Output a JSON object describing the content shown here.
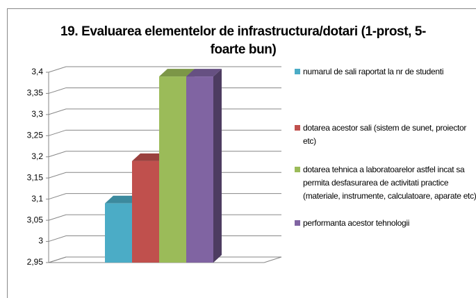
{
  "chart_data": {
    "type": "bar",
    "title": "19. Evaluarea elementelor de infrastructura/dotari (1-prost, 5-foarte bun)",
    "series": [
      {
        "name": "numarul de sali raportat la nr de studenti",
        "color": "#4bacc6",
        "values": [
          3.09
        ]
      },
      {
        "name": "dotarea acestor sali (sistem de sunet, proiector etc)",
        "color": "#c0504d",
        "values": [
          3.19
        ]
      },
      {
        "name": "dotarea tehnica a laboratoarelor astfel incat sa permita desfasurarea de activitati practice (materiale, instrumente, calculatoare, aparate etc)",
        "color": "#9bbb59",
        "values": [
          3.39
        ]
      },
      {
        "name": "performanta acestor tehnologii",
        "color": "#8064a2",
        "values": [
          3.39
        ]
      }
    ],
    "ylim": [
      2.95,
      3.4
    ],
    "yticks": [
      {
        "value": 2.95,
        "label": "2,95"
      },
      3,
      {
        "value": 3.05,
        "label": "3,05"
      },
      {
        "value": 3.1,
        "label": "3,1"
      },
      {
        "value": 3.15,
        "label": "3,15"
      },
      {
        "value": 3.2,
        "label": "3,2"
      },
      {
        "value": 3.25,
        "label": "3,25"
      },
      {
        "value": 3.3,
        "label": "3,3"
      },
      {
        "value": 3.35,
        "label": "3,35"
      },
      {
        "value": 3.4,
        "label": "3,4"
      }
    ],
    "grid": true,
    "legend": "right"
  }
}
